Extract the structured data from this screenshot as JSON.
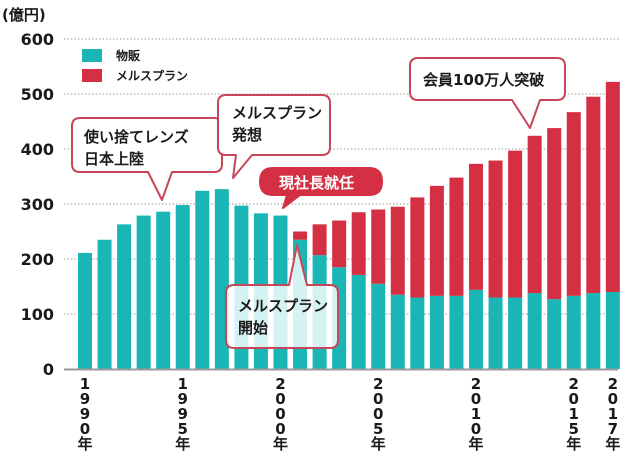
{
  "chart_data": {
    "type": "bar",
    "stacked": true,
    "title": "",
    "xlabel": "",
    "ylabel": "(億円)",
    "ylim": [
      0,
      600
    ],
    "yticks": [
      0,
      100,
      200,
      300,
      400,
      500,
      600
    ],
    "grid": true,
    "legend_position": "top-left",
    "categories": [
      "1990",
      "1991",
      "1992",
      "1993",
      "1994",
      "1995",
      "1996",
      "1997",
      "1998",
      "1999",
      "2000",
      "2001",
      "2002",
      "2003",
      "2004",
      "2005",
      "2006",
      "2007",
      "2008",
      "2009",
      "2010",
      "2011",
      "2012",
      "2013",
      "2014",
      "2015",
      "2016",
      "2017"
    ],
    "xtick_labels": [
      {
        "index": 0,
        "label": "1990年"
      },
      {
        "index": 5,
        "label": "1995年"
      },
      {
        "index": 10,
        "label": "2000年"
      },
      {
        "index": 15,
        "label": "2005年"
      },
      {
        "index": 20,
        "label": "2010年"
      },
      {
        "index": 25,
        "label": "2015年"
      },
      {
        "index": 27,
        "label": "2017年"
      }
    ],
    "series": [
      {
        "name": "物販",
        "color": "#1ab5b5",
        "values": [
          211,
          235,
          263,
          279,
          286,
          298,
          324,
          327,
          297,
          283,
          279,
          235,
          207,
          185,
          171,
          155,
          135,
          130,
          133,
          133,
          144,
          130,
          130,
          138,
          127,
          133,
          138,
          140
        ]
      },
      {
        "name": "メルスプラン",
        "color": "#d42f42",
        "values": [
          0,
          0,
          0,
          0,
          0,
          0,
          0,
          0,
          0,
          0,
          0,
          15,
          56,
          85,
          114,
          135,
          160,
          182,
          200,
          215,
          229,
          249,
          267,
          286,
          311,
          334,
          357,
          382
        ]
      }
    ],
    "annotations": [
      {
        "id": "lens",
        "lines": [
          "使い捨てレンズ",
          "日本上陸"
        ],
        "category": "1994",
        "style": "outline"
      },
      {
        "id": "idea",
        "lines": [
          "メルスプラン",
          "発想"
        ],
        "category": "1998",
        "style": "outline"
      },
      {
        "id": "president",
        "lines": [
          "現社長就任"
        ],
        "category": "2000",
        "style": "filled"
      },
      {
        "id": "start",
        "lines": [
          "メルスプラン",
          "開始"
        ],
        "category": "2001",
        "style": "outline-translucent"
      },
      {
        "id": "members",
        "lines": [
          "会員100万人突破"
        ],
        "category": "2013",
        "style": "outline"
      }
    ]
  },
  "legend": {
    "items": [
      {
        "label": "物販",
        "color": "#1ab5b5"
      },
      {
        "label": "メルスプラン",
        "color": "#d42f42"
      }
    ]
  },
  "colors": {
    "callout_border": "#c8465a",
    "callout_fill": "#ffffff",
    "callout_filled_bg": "#d42f42",
    "axis": "#999999",
    "grid": "#999999"
  }
}
